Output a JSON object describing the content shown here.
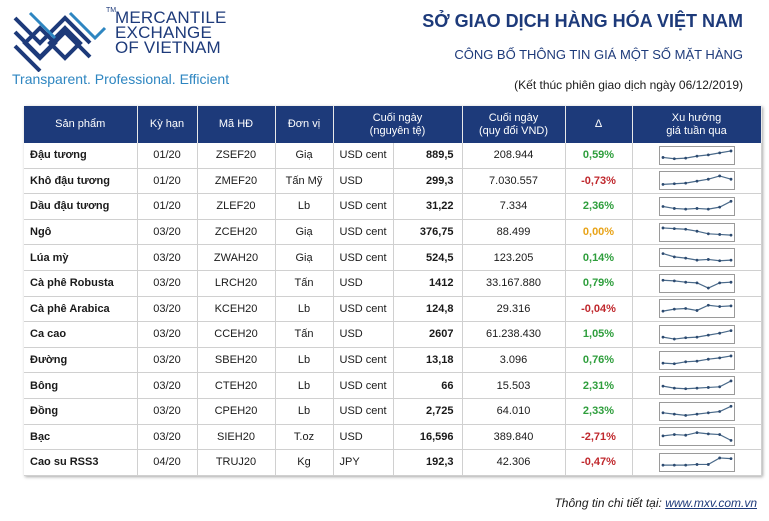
{
  "brand": {
    "line1": "MERCANTILE",
    "line2": "EXCHANGE",
    "line3": "OF VIETNAM",
    "trademark": "TM",
    "tagline": "Transparent. Professional. Efficient"
  },
  "header": {
    "title": "SỞ GIAO DỊCH HÀNG HÓA VIỆT NAM",
    "subtitle": "CÔNG BỐ THÔNG TIN GIÁ MỘT SỐ MẶT HÀNG",
    "session": "(Kết thúc phiên giao dịch ngày 06/12/2019)"
  },
  "columns": {
    "product": "Sản phẩm",
    "term": "Kỳ hạn",
    "code": "Mã HĐ",
    "unit": "Đơn vị",
    "close_line1": "Cuối ngày",
    "close_line2": "(nguyên tệ)",
    "vnd_line1": "Cuối ngày",
    "vnd_line2": "(quy đổi VND)",
    "delta": "Δ",
    "trend_line1": "Xu hướng",
    "trend_line2": "giá tuần qua"
  },
  "colors": {
    "header_bg": "#1d3a7a",
    "positive": "#2e9e3c",
    "negative": "#c0282d",
    "neutral": "#e8a317"
  },
  "rows": [
    {
      "product": "Đậu tương",
      "term": "01/20",
      "code": "ZSEF20",
      "unit": "Giạ",
      "currency": "USD cent",
      "price": "889,5",
      "vnd": "208.944",
      "change": "0,59%",
      "dir": "pos",
      "trend": [
        0.35,
        0.25,
        0.3,
        0.45,
        0.55,
        0.7,
        0.85
      ]
    },
    {
      "product": "Khô đậu tương",
      "term": "01/20",
      "code": "ZMEF20",
      "unit": "Tấn Mỹ",
      "currency": "USD",
      "price": "299,3",
      "vnd": "7.030.557",
      "change": "-0,73%",
      "dir": "neg",
      "trend": [
        0.2,
        0.25,
        0.3,
        0.45,
        0.6,
        0.85,
        0.6
      ]
    },
    {
      "product": "Dầu đậu tương",
      "term": "01/20",
      "code": "ZLEF20",
      "unit": "Lb",
      "currency": "USD cent",
      "price": "31,22",
      "vnd": "7.334",
      "change": "2,36%",
      "dir": "pos",
      "trend": [
        0.5,
        0.35,
        0.3,
        0.35,
        0.3,
        0.45,
        0.9
      ]
    },
    {
      "product": "Ngô",
      "term": "03/20",
      "code": "ZCEH20",
      "unit": "Giạ",
      "currency": "USD cent",
      "price": "376,75",
      "vnd": "88.499",
      "change": "0,00%",
      "dir": "neu",
      "trend": [
        0.85,
        0.8,
        0.75,
        0.6,
        0.4,
        0.35,
        0.3
      ]
    },
    {
      "product": "Lúa mỳ",
      "term": "03/20",
      "code": "ZWAH20",
      "unit": "Giạ",
      "currency": "USD cent",
      "price": "524,5",
      "vnd": "123.205",
      "change": "0,14%",
      "dir": "pos",
      "trend": [
        0.8,
        0.55,
        0.45,
        0.3,
        0.35,
        0.25,
        0.3
      ]
    },
    {
      "product": "Cà phê Robusta",
      "term": "03/20",
      "code": "LRCH20",
      "unit": "Tấn",
      "currency": "USD",
      "price": "1412",
      "vnd": "33.167.880",
      "change": "0,79%",
      "dir": "pos",
      "trend": [
        0.75,
        0.7,
        0.6,
        0.55,
        0.15,
        0.55,
        0.6
      ]
    },
    {
      "product": "Cà phê Arabica",
      "term": "03/20",
      "code": "KCEH20",
      "unit": "Lb",
      "currency": "USD cent",
      "price": "124,8",
      "vnd": "29.316",
      "change": "-0,04%",
      "dir": "neg",
      "trend": [
        0.3,
        0.45,
        0.5,
        0.35,
        0.75,
        0.65,
        0.7
      ]
    },
    {
      "product": "Ca cao",
      "term": "03/20",
      "code": "CCEH20",
      "unit": "Tấn",
      "currency": "USD",
      "price": "2607",
      "vnd": "61.238.430",
      "change": "1,05%",
      "dir": "pos",
      "trend": [
        0.3,
        0.15,
        0.25,
        0.3,
        0.45,
        0.6,
        0.8
      ]
    },
    {
      "product": "Đường",
      "term": "03/20",
      "code": "SBEH20",
      "unit": "Lb",
      "currency": "USD cent",
      "price": "13,18",
      "vnd": "3.096",
      "change": "0,76%",
      "dir": "pos",
      "trend": [
        0.3,
        0.25,
        0.4,
        0.45,
        0.6,
        0.7,
        0.85
      ]
    },
    {
      "product": "Bông",
      "term": "03/20",
      "code": "CTEH20",
      "unit": "Lb",
      "currency": "USD cent",
      "price": "66",
      "vnd": "15.503",
      "change": "2,31%",
      "dir": "pos",
      "trend": [
        0.45,
        0.3,
        0.25,
        0.3,
        0.35,
        0.4,
        0.85
      ]
    },
    {
      "product": "Đồng",
      "term": "03/20",
      "code": "CPEH20",
      "unit": "Lb",
      "currency": "USD cent",
      "price": "2,725",
      "vnd": "64.010",
      "change": "2,33%",
      "dir": "pos",
      "trend": [
        0.4,
        0.3,
        0.2,
        0.3,
        0.4,
        0.5,
        0.9
      ]
    },
    {
      "product": "Bạc",
      "term": "03/20",
      "code": "SIEH20",
      "unit": "T.oz",
      "currency": "USD",
      "price": "16,596",
      "vnd": "389.840",
      "change": "-2,71%",
      "dir": "neg",
      "trend": [
        0.55,
        0.65,
        0.6,
        0.8,
        0.7,
        0.65,
        0.2
      ]
    },
    {
      "product": "Cao su RSS3",
      "term": "04/20",
      "code": "TRUJ20",
      "unit": "Kg",
      "currency": "JPY",
      "price": "192,3",
      "vnd": "42.306",
      "change": "-0,47%",
      "dir": "neg",
      "trend": [
        0.3,
        0.3,
        0.3,
        0.35,
        0.35,
        0.85,
        0.8
      ]
    }
  ],
  "footer": {
    "label": "Thông tin chi tiết tại: ",
    "link": "www.mxv.com.vn"
  }
}
